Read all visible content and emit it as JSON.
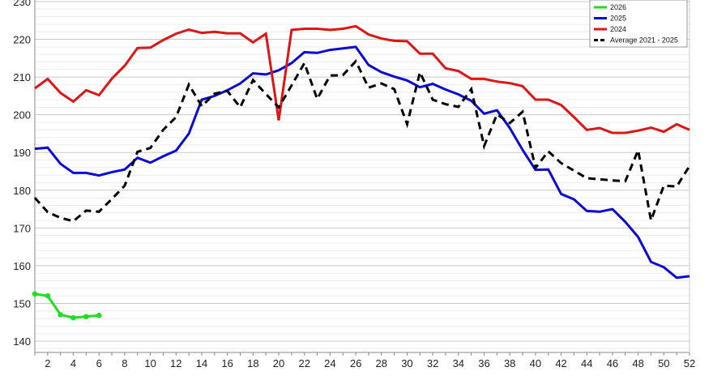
{
  "chart_data": {
    "type": "line",
    "title": "",
    "xlabel": "",
    "ylabel": "",
    "xlim": [
      1,
      52
    ],
    "ylim": [
      138,
      230
    ],
    "x_ticks": [
      2,
      4,
      6,
      8,
      10,
      12,
      14,
      16,
      18,
      20,
      22,
      24,
      26,
      28,
      30,
      32,
      34,
      36,
      38,
      40,
      42,
      44,
      46,
      48,
      50,
      52
    ],
    "y_ticks": [
      140,
      150,
      160,
      170,
      180,
      190,
      200,
      210,
      220,
      230
    ],
    "grid": "horizontal",
    "legend_position": "top-right",
    "series": [
      {
        "name": "2026",
        "color": "#22dd22",
        "dash": "solid",
        "markers": true,
        "x": [
          1,
          2,
          3,
          4,
          5,
          6
        ],
        "values": [
          152.5,
          152.0,
          147.0,
          146.2,
          146.5,
          146.8
        ]
      },
      {
        "name": "2025",
        "color": "#0a0ad6",
        "dash": "solid",
        "markers": false,
        "x": [
          1,
          2,
          3,
          4,
          5,
          6,
          7,
          8,
          9,
          10,
          11,
          12,
          13,
          14,
          15,
          16,
          17,
          18,
          19,
          20,
          21,
          22,
          23,
          24,
          25,
          26,
          27,
          28,
          29,
          30,
          31,
          32,
          33,
          34,
          35,
          36,
          37,
          38,
          39,
          40,
          41,
          42,
          43,
          44,
          45,
          46,
          47,
          48,
          49,
          50,
          51,
          52
        ],
        "values": [
          191.0,
          191.3,
          187.0,
          184.6,
          184.6,
          183.9,
          184.8,
          185.5,
          188.6,
          187.3,
          189.0,
          190.5,
          195.0,
          204.0,
          205.0,
          206.5,
          208.3,
          211.0,
          210.7,
          211.8,
          213.7,
          216.6,
          216.4,
          217.2,
          217.6,
          218.0,
          213.2,
          211.3,
          210.1,
          209.1,
          207.3,
          208.2,
          206.7,
          205.4,
          203.7,
          200.3,
          201.2,
          196.5,
          190.7,
          185.4,
          185.5,
          179.0,
          177.6,
          174.5,
          174.3,
          175.0,
          171.6,
          167.6,
          161.0,
          159.6,
          156.8,
          157.2
        ]
      },
      {
        "name": "2024",
        "color": "#dd1515",
        "dash": "solid",
        "markers": false,
        "x": [
          1,
          2,
          3,
          4,
          5,
          6,
          7,
          8,
          9,
          10,
          11,
          12,
          13,
          14,
          15,
          16,
          17,
          18,
          19,
          20,
          21,
          22,
          23,
          24,
          25,
          26,
          27,
          28,
          29,
          30,
          31,
          32,
          33,
          34,
          35,
          36,
          37,
          38,
          39,
          40,
          41,
          42,
          43,
          44,
          45,
          46,
          47,
          48,
          49,
          50,
          51,
          52
        ],
        "values": [
          207.0,
          209.5,
          205.8,
          203.5,
          206.5,
          205.2,
          209.6,
          213.0,
          217.7,
          217.8,
          219.8,
          221.5,
          222.6,
          221.7,
          222.0,
          221.6,
          221.6,
          219.2,
          221.5,
          198.5,
          222.5,
          222.8,
          222.8,
          222.5,
          222.8,
          223.5,
          221.3,
          220.2,
          219.6,
          219.5,
          216.2,
          216.2,
          212.3,
          211.6,
          209.5,
          209.5,
          208.8,
          208.4,
          207.6,
          204.0,
          204.0,
          202.6,
          199.4,
          196.0,
          196.5,
          195.2,
          195.2,
          195.8,
          196.6,
          195.5,
          197.5,
          196.0
        ]
      },
      {
        "name": "Average 2021 - 2025",
        "color": "#000000",
        "dash": "dashed",
        "markers": false,
        "x": [
          1,
          2,
          3,
          4,
          5,
          6,
          7,
          8,
          9,
          10,
          11,
          12,
          13,
          14,
          15,
          16,
          17,
          18,
          19,
          20,
          21,
          22,
          23,
          24,
          25,
          26,
          27,
          28,
          29,
          30,
          31,
          32,
          33,
          34,
          35,
          36,
          37,
          38,
          39,
          40,
          41,
          42,
          43,
          44,
          45,
          46,
          47,
          48,
          49,
          50,
          51,
          52
        ],
        "values": [
          178.0,
          174.2,
          172.7,
          171.8,
          174.6,
          174.3,
          177.7,
          181.2,
          190.2,
          191.2,
          196.0,
          199.4,
          208.0,
          202.3,
          205.6,
          206.3,
          202.0,
          209.2,
          205.5,
          202.0,
          207.8,
          213.7,
          204.2,
          210.4,
          210.5,
          214.2,
          207.2,
          208.3,
          206.8,
          197.5,
          211.3,
          204.0,
          202.8,
          202.1,
          206.8,
          191.7,
          200.1,
          197.8,
          200.8,
          185.9,
          190.3,
          187.2,
          185.2,
          183.2,
          182.9,
          182.6,
          182.4,
          190.6,
          172.0,
          181.2,
          181.0,
          186.4
        ]
      }
    ]
  }
}
